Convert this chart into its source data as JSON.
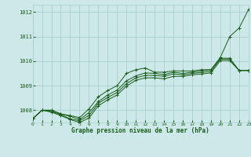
{
  "title": "Graphe pression niveau de la mer (hPa)",
  "background_color": "#cce8e8",
  "grid_color": "#aacfcf",
  "line_color": "#1a5c1a",
  "x_min": 0,
  "x_max": 23,
  "y_min": 1007.5,
  "y_max": 1012.3,
  "yticks": [
    1008,
    1009,
    1010,
    1011,
    1012
  ],
  "xticks": [
    0,
    1,
    2,
    3,
    4,
    5,
    6,
    7,
    8,
    9,
    10,
    11,
    12,
    13,
    14,
    15,
    16,
    17,
    18,
    19,
    20,
    21,
    22,
    23
  ],
  "series": [
    [
      1007.65,
      1008.0,
      1008.0,
      1007.85,
      1007.78,
      1007.7,
      1008.05,
      1008.55,
      1008.8,
      1009.0,
      1009.5,
      1009.65,
      1009.72,
      1009.55,
      1009.55,
      1009.6,
      1009.6,
      1009.6,
      1009.65,
      1009.65,
      1010.15,
      1011.0,
      1011.35,
      1012.1
    ],
    [
      1007.65,
      1008.0,
      1008.0,
      1007.85,
      1007.75,
      1007.62,
      1007.9,
      1008.35,
      1008.62,
      1008.82,
      1009.2,
      1009.4,
      1009.52,
      1009.5,
      1009.45,
      1009.55,
      1009.5,
      1009.55,
      1009.6,
      1009.65,
      1010.12,
      1010.12,
      1009.62,
      1009.62
    ],
    [
      1007.65,
      1008.0,
      1007.95,
      1007.82,
      1007.65,
      1007.57,
      1007.78,
      1008.28,
      1008.52,
      1008.72,
      1009.08,
      1009.32,
      1009.42,
      1009.42,
      1009.38,
      1009.48,
      1009.44,
      1009.5,
      1009.54,
      1009.58,
      1010.08,
      1010.08,
      1009.62,
      1009.62
    ],
    [
      1007.65,
      1008.0,
      1007.92,
      1007.78,
      1007.62,
      1007.5,
      1007.68,
      1008.18,
      1008.42,
      1008.62,
      1008.98,
      1009.22,
      1009.32,
      1009.32,
      1009.28,
      1009.38,
      1009.38,
      1009.44,
      1009.48,
      1009.52,
      1010.02,
      1010.02,
      1009.62,
      1009.62
    ]
  ]
}
